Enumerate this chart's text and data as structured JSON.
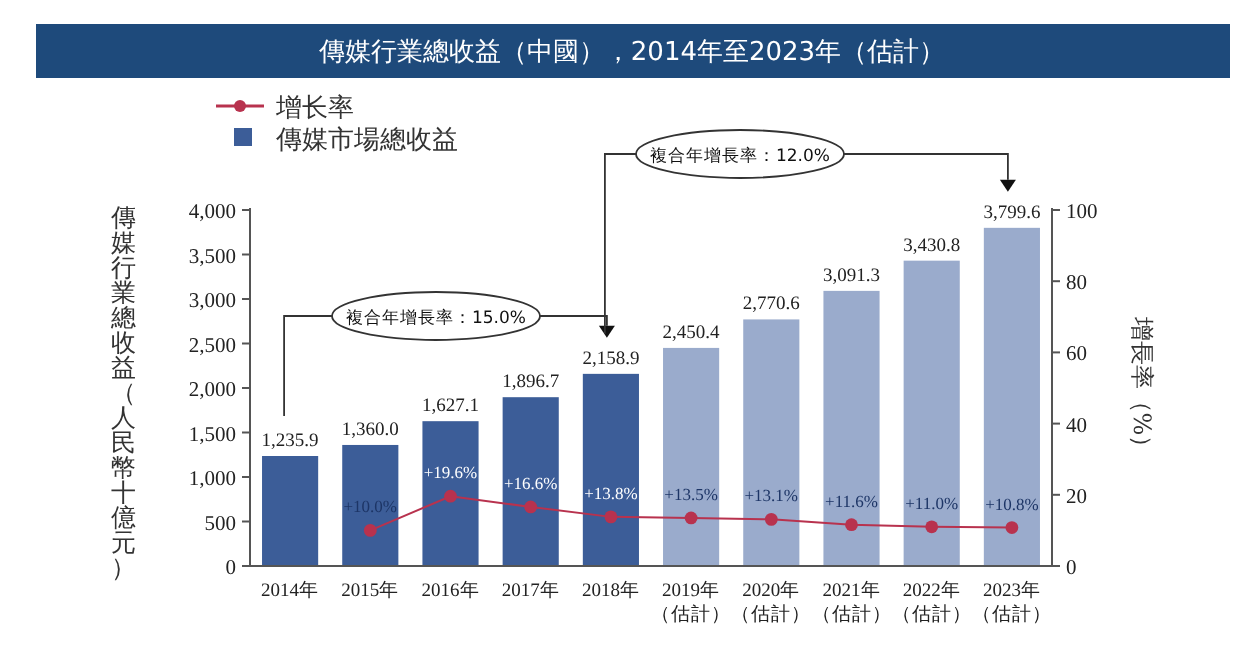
{
  "chart_data": {
    "type": "bar",
    "title": "傳媒行業總收益（中國），2014年至2023年（估計）",
    "categories": [
      "2014年",
      "2015年",
      "2016年",
      "2017年",
      "2018年",
      "2019年（估計）",
      "2020年（估計）",
      "2021年（估計）",
      "2022年（估計）",
      "2023年（估計）"
    ],
    "series": [
      {
        "name": "傳媒市場總收益",
        "color": "#3c5d98",
        "colors": [
          "#3c5d98",
          "#3c5d98",
          "#3c5d98",
          "#3c5d98",
          "#3c5d98",
          "#9aabcc",
          "#9aabcc",
          "#9aabcc",
          "#9aabcc",
          "#9aabcc"
        ],
        "values": [
          1235.9,
          1360.0,
          1627.1,
          1896.7,
          2158.9,
          2450.4,
          2770.6,
          3091.3,
          3430.8,
          3799.6
        ],
        "value_labels": [
          "1,235.9",
          "1,360.0",
          "1,627.1",
          "1,896.7",
          "2,158.9",
          "2,450.4",
          "2,770.6",
          "3,091.3",
          "3,430.8",
          "3,799.6"
        ]
      },
      {
        "name": "增长率",
        "type": "line",
        "axis": "y2",
        "color": "#b8324e",
        "marker": "circle",
        "values": [
          null,
          10.0,
          19.6,
          16.6,
          13.8,
          13.5,
          13.1,
          11.6,
          11.0,
          10.8
        ],
        "value_labels": [
          null,
          "+10.0%",
          "+19.6%",
          "+16.6%",
          "+13.8%",
          "+13.5%",
          "+13.1%",
          "+11.6%",
          "+11.0%",
          "+10.8%"
        ]
      }
    ],
    "ylabel": "傳媒行業總收益（人民幣十億元）",
    "y2label": "增長率（%）",
    "ylim": [
      0,
      4000
    ],
    "yticks": [
      0,
      500,
      {
        "value": 1000,
        "label": "1,000"
      },
      {
        "value": 1500,
        "label": "1,500"
      },
      {
        "value": 2000,
        "label": "2,000"
      },
      {
        "value": 2500,
        "label": "2,500"
      },
      {
        "value": 3000,
        "label": "3,000"
      },
      {
        "value": 3500,
        "label": "3,500"
      },
      {
        "value": 4000,
        "label": "4,000"
      }
    ],
    "y2lim": [
      0,
      100
    ],
    "y2ticks": [
      0,
      20,
      40,
      60,
      80,
      100
    ],
    "annotations": [
      "複合年增長率：15.0%",
      "複合年增長率：12.0%"
    ],
    "legend": "top left"
  }
}
